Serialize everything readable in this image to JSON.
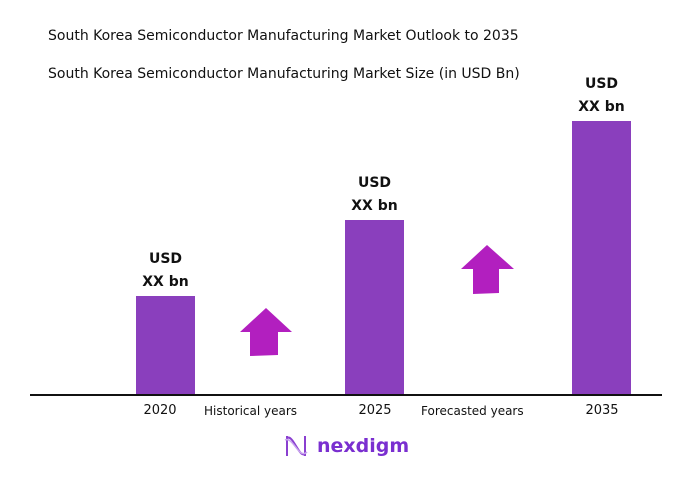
{
  "title": "South Korea Semiconductor Manufacturing Market Outlook to 2035",
  "chart_data": {
    "type": "bar",
    "title": "South Korea Semiconductor Manufacturing Market Size (in USD Bn)",
    "categories": [
      "2020",
      "2025",
      "2035"
    ],
    "relative_values": [
      0.36,
      0.64,
      1.0
    ],
    "data_labels": [
      {
        "line1": "USD",
        "line2": "XX bn"
      },
      {
        "line1": "USD",
        "line2": "XX bn"
      },
      {
        "line1": "USD",
        "line2": "XX bn"
      }
    ],
    "period_labels": [
      "Historical years",
      "Forecasted years"
    ],
    "bar_color": "#8a3fbd",
    "arrow_color": "#b21fbf",
    "grid": false
  },
  "logo": {
    "text": "nexdigm",
    "color": "#7a2fd0"
  }
}
